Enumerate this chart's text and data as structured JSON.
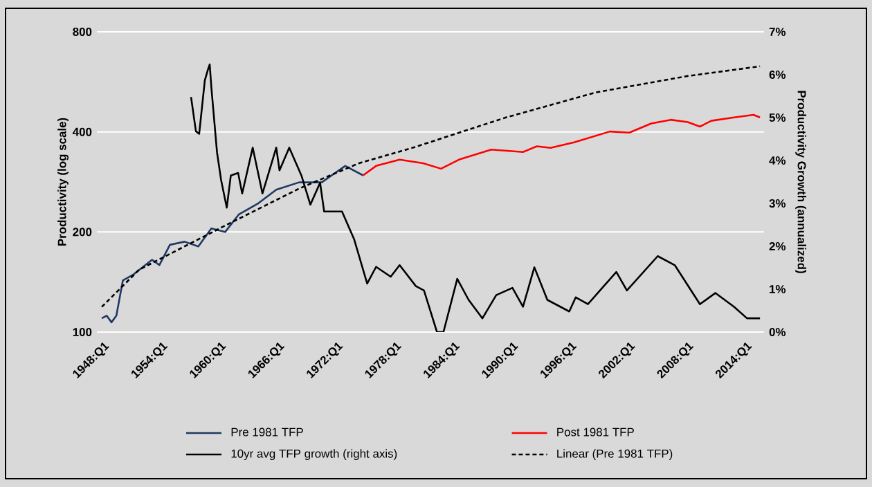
{
  "chart_data": {
    "type": "line",
    "ylabel": "Productivity (log scale)",
    "y2label": "Productivity Growth (annualized)",
    "log": "y",
    "grid": "y",
    "legend": "bottom",
    "xlim": [
      "1947-07",
      "2016-01"
    ],
    "ylim": [
      100,
      800
    ],
    "y2lim": [
      0,
      7
    ],
    "xticks": [
      {
        "value": "1948-01",
        "label": "1948:Q1"
      },
      {
        "value": "1954-01",
        "label": "1954:Q1"
      },
      {
        "value": "1960-01",
        "label": "1960:Q1"
      },
      {
        "value": "1966-01",
        "label": "1966:Q1"
      },
      {
        "value": "1972-01",
        "label": "1972:Q1"
      },
      {
        "value": "1978-01",
        "label": "1978:Q1"
      },
      {
        "value": "1984-01",
        "label": "1984:Q1"
      },
      {
        "value": "1990-01",
        "label": "1990:Q1"
      },
      {
        "value": "1996-01",
        "label": "1996:Q1"
      },
      {
        "value": "2002-01",
        "label": "2002:Q1"
      },
      {
        "value": "2008-01",
        "label": "2008:Q1"
      },
      {
        "value": "2014-01",
        "label": "2014:Q1"
      }
    ],
    "yticks": [
      100,
      200,
      400,
      800
    ],
    "y2ticks": [
      {
        "value": 0,
        "label": "0%"
      },
      {
        "value": 1,
        "label": "1%"
      },
      {
        "value": 2,
        "label": "2%"
      },
      {
        "value": 3,
        "label": "3%"
      },
      {
        "value": 4,
        "label": "4%"
      },
      {
        "value": 5,
        "label": "5%"
      },
      {
        "value": 6,
        "label": "6%"
      },
      {
        "value": 7,
        "label": "7%"
      }
    ],
    "series": [
      {
        "name": "Pre 1981 TFP",
        "color": "#1f3864",
        "x": [
          "1948-01",
          "1948-07",
          "1949-01",
          "1949-07",
          "1950-03",
          "1951-04",
          "1953-03",
          "1953-12",
          "1955-01",
          "1956-07",
          "1957-12",
          "1959-04",
          "1960-09",
          "1962-02",
          "1964-02",
          "1965-12",
          "1968-04",
          "1970-08",
          "1973-01",
          "1974-11"
        ],
        "values": [
          110,
          112,
          107,
          112,
          143,
          149,
          165,
          159,
          183,
          187,
          181,
          205,
          200,
          226,
          244,
          268,
          282,
          282,
          316,
          296
        ]
      },
      {
        "name": "Post 1981 TFP",
        "color": "#ff0000",
        "x": [
          "1974-11",
          "1976-03",
          "1978-08",
          "1981-01",
          "1982-11",
          "1984-09",
          "1988-01",
          "1991-04",
          "1992-09",
          "1994-02",
          "1996-07",
          "2000-03",
          "2002-03",
          "2004-06",
          "2006-06",
          "2008-03",
          "2009-06",
          "2010-08",
          "2012-12",
          "2014-12",
          "2015-08"
        ],
        "values": [
          296,
          316,
          330,
          322,
          310,
          330,
          354,
          348,
          362,
          358,
          372,
          401,
          398,
          424,
          435,
          428,
          415,
          432,
          442,
          450,
          442
        ]
      },
      {
        "name": "10yr avg TFP growth (right axis)",
        "axis": "y2",
        "color": "#000000",
        "x": [
          "1957-03",
          "1957-09",
          "1958-01",
          "1958-08",
          "1958-12",
          "1959-02",
          "1959-04",
          "1959-11",
          "1960-04",
          "1960-11",
          "1961-04",
          "1962-01",
          "1962-06",
          "1963-07",
          "1964-07",
          "1965-12",
          "1966-04",
          "1967-04",
          "1968-07",
          "1969-06",
          "1970-06",
          "1970-11",
          "1972-09",
          "1973-12",
          "1975-04",
          "1976-03",
          "1977-09",
          "1978-08",
          "1980-04",
          "1981-02",
          "1982-06",
          "1983-02",
          "1984-07",
          "1985-09",
          "1987-02",
          "1988-07",
          "1990-03",
          "1991-04",
          "1992-06",
          "1993-10",
          "1996-01",
          "1996-09",
          "1997-12",
          "2000-11",
          "2001-12",
          "2005-02",
          "2006-11",
          "2009-06",
          "2011-01",
          "2012-12",
          "2014-04",
          "2015-08"
        ],
        "values": [
          5.48,
          4.68,
          4.62,
          5.87,
          6.13,
          6.24,
          5.71,
          4.19,
          3.55,
          2.9,
          3.65,
          3.71,
          3.23,
          4.3,
          3.23,
          4.3,
          3.77,
          4.3,
          3.65,
          2.97,
          3.48,
          2.81,
          2.81,
          2.16,
          1.13,
          1.52,
          1.29,
          1.56,
          1.07,
          0.97,
          0,
          0,
          1.24,
          0.75,
          0.32,
          0.86,
          1.03,
          0.59,
          1.51,
          0.75,
          0.48,
          0.81,
          0.65,
          1.4,
          0.97,
          1.77,
          1.56,
          0.65,
          0.91,
          0.59,
          0.32,
          0.32
        ]
      },
      {
        "name": "Linear (Pre 1981 TFP)",
        "line_style": "dashed",
        "color": "#000000",
        "x": [
          "1948-01",
          "1951-11",
          "1960-09",
          "1968-04",
          "1974-06",
          "1980-01",
          "1989-07",
          "1998-10",
          "2008-03",
          "2015-08"
        ],
        "values": [
          119,
          154,
          209,
          270,
          322,
          359,
          442,
          526,
          589,
          630
        ]
      }
    ]
  }
}
